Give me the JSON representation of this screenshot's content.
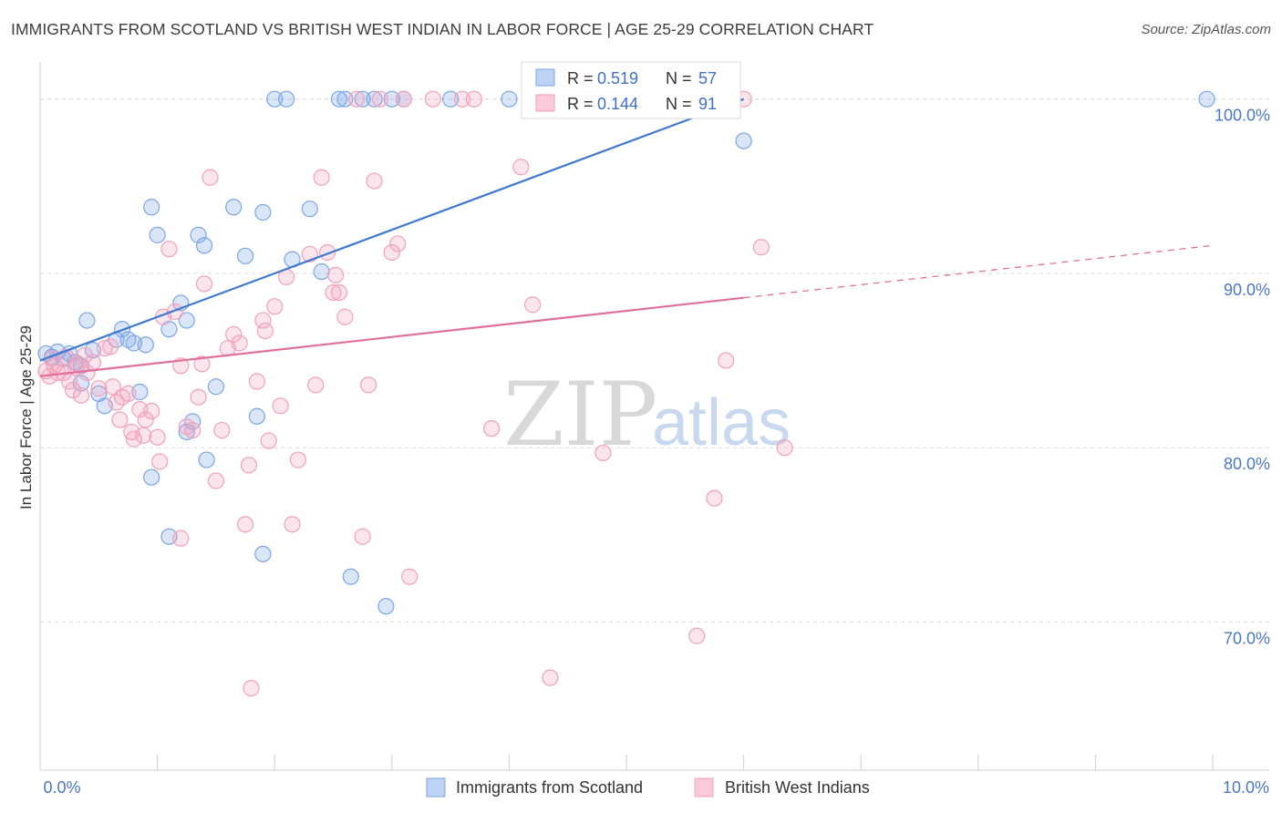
{
  "title": "IMMIGRANTS FROM SCOTLAND VS BRITISH WEST INDIAN IN LABOR FORCE | AGE 25-29 CORRELATION CHART",
  "source": "Source: ZipAtlas.com",
  "watermark": {
    "zip": "ZIP",
    "atlas": "atlas"
  },
  "legend": {
    "r_label": "R =",
    "n_label": "N =",
    "entries": [
      {
        "r": "0.519",
        "n": "57"
      },
      {
        "r": "0.144",
        "n": "91"
      }
    ]
  },
  "bottom_legend": [
    {
      "label": "Immigrants from Scotland"
    },
    {
      "label": "British West Indians"
    }
  ],
  "chart_data": {
    "type": "scatter",
    "xlabel": "",
    "ylabel": "In Labor Force | Age 25-29",
    "x_tick_labels": [
      "0.0%",
      "10.0%"
    ],
    "y_tick_labels": [
      "100.0%",
      "90.0%",
      "80.0%",
      "70.0%"
    ],
    "xlim": [
      0,
      10
    ],
    "ylim": [
      61.5,
      101.5
    ],
    "y_ticks": [
      100,
      90,
      80,
      70
    ],
    "grid": true,
    "colors": {
      "scotland": "#7aa6e6",
      "scotland_line": "#3e78cf",
      "bwi": "#f2a0bb",
      "bwi_line": "#e0709a"
    },
    "series": [
      {
        "name": "Immigrants from Scotland",
        "key": "scotland",
        "trend": {
          "x0": 0.0,
          "y0": 85.0,
          "x1": 6.0,
          "y1": 100.0
        },
        "points": [
          [
            0.05,
            85.4
          ],
          [
            0.1,
            85.2
          ],
          [
            0.15,
            85.5
          ],
          [
            0.2,
            85.1
          ],
          [
            0.25,
            85.4
          ],
          [
            0.3,
            84.9
          ],
          [
            0.35,
            84.7
          ],
          [
            0.35,
            83.7
          ],
          [
            0.4,
            87.3
          ],
          [
            0.45,
            85.6
          ],
          [
            0.5,
            83.1
          ],
          [
            0.55,
            82.4
          ],
          [
            0.65,
            86.2
          ],
          [
            0.7,
            86.8
          ],
          [
            0.75,
            86.2
          ],
          [
            0.8,
            86.0
          ],
          [
            0.85,
            83.2
          ],
          [
            0.9,
            85.9
          ],
          [
            0.95,
            78.3
          ],
          [
            0.95,
            93.8
          ],
          [
            1.0,
            92.2
          ],
          [
            1.1,
            86.8
          ],
          [
            1.1,
            74.9
          ],
          [
            1.2,
            88.3
          ],
          [
            1.25,
            87.3
          ],
          [
            1.25,
            80.9
          ],
          [
            1.3,
            81.5
          ],
          [
            1.35,
            92.2
          ],
          [
            1.4,
            91.6
          ],
          [
            1.42,
            79.3
          ],
          [
            1.5,
            83.5
          ],
          [
            1.65,
            93.8
          ],
          [
            1.75,
            91.0
          ],
          [
            1.85,
            81.8
          ],
          [
            1.9,
            93.5
          ],
          [
            1.9,
            73.9
          ],
          [
            2.0,
            100.0
          ],
          [
            2.1,
            100.0
          ],
          [
            2.15,
            90.8
          ],
          [
            2.3,
            93.7
          ],
          [
            2.4,
            90.1
          ],
          [
            2.55,
            100.0
          ],
          [
            2.6,
            100.0
          ],
          [
            2.65,
            72.6
          ],
          [
            2.75,
            100.0
          ],
          [
            2.85,
            100.0
          ],
          [
            2.95,
            70.9
          ],
          [
            3.0,
            100.0
          ],
          [
            3.1,
            100.0
          ],
          [
            3.5,
            100.0
          ],
          [
            4.0,
            100.0
          ],
          [
            4.3,
            100.0
          ],
          [
            4.7,
            100.0
          ],
          [
            5.4,
            100.0
          ],
          [
            5.9,
            100.0
          ],
          [
            6.0,
            97.6
          ],
          [
            9.95,
            100.0
          ]
        ]
      },
      {
        "name": "British West Indians",
        "key": "bwi",
        "trend": {
          "x0": 0.0,
          "y0": 84.1,
          "x1": 6.0,
          "y1": 88.6
        },
        "trend_dash": {
          "x0": 6.0,
          "y0": 88.6,
          "x1": 10.0,
          "y1": 91.6
        },
        "points": [
          [
            0.05,
            84.4
          ],
          [
            0.08,
            84.1
          ],
          [
            0.1,
            85.1
          ],
          [
            0.12,
            84.7
          ],
          [
            0.15,
            84.3
          ],
          [
            0.2,
            84.3
          ],
          [
            0.22,
            85.2
          ],
          [
            0.25,
            83.8
          ],
          [
            0.28,
            83.3
          ],
          [
            0.3,
            84.6
          ],
          [
            0.32,
            84.8
          ],
          [
            0.35,
            83.0
          ],
          [
            0.38,
            85.3
          ],
          [
            0.4,
            84.3
          ],
          [
            0.45,
            84.9
          ],
          [
            0.5,
            83.4
          ],
          [
            0.55,
            85.7
          ],
          [
            0.6,
            85.8
          ],
          [
            0.62,
            83.5
          ],
          [
            0.65,
            82.6
          ],
          [
            0.68,
            81.6
          ],
          [
            0.7,
            82.9
          ],
          [
            0.75,
            83.1
          ],
          [
            0.78,
            80.9
          ],
          [
            0.8,
            80.5
          ],
          [
            0.85,
            82.2
          ],
          [
            0.88,
            80.7
          ],
          [
            0.9,
            81.6
          ],
          [
            0.95,
            82.1
          ],
          [
            1.0,
            80.6
          ],
          [
            1.02,
            79.2
          ],
          [
            1.05,
            87.5
          ],
          [
            1.1,
            91.4
          ],
          [
            1.15,
            87.8
          ],
          [
            1.2,
            84.7
          ],
          [
            1.25,
            81.2
          ],
          [
            1.3,
            81.0
          ],
          [
            1.35,
            82.9
          ],
          [
            1.38,
            84.8
          ],
          [
            1.4,
            89.4
          ],
          [
            1.45,
            95.5
          ],
          [
            1.5,
            78.1
          ],
          [
            1.55,
            81.0
          ],
          [
            1.6,
            85.7
          ],
          [
            1.65,
            86.5
          ],
          [
            1.7,
            86.0
          ],
          [
            1.75,
            75.6
          ],
          [
            1.78,
            79.0
          ],
          [
            1.8,
            66.2
          ],
          [
            1.85,
            83.8
          ],
          [
            1.9,
            87.3
          ],
          [
            1.92,
            86.7
          ],
          [
            1.95,
            80.4
          ],
          [
            2.0,
            88.1
          ],
          [
            2.05,
            82.4
          ],
          [
            2.1,
            89.8
          ],
          [
            2.15,
            75.6
          ],
          [
            2.2,
            79.3
          ],
          [
            2.3,
            91.1
          ],
          [
            2.35,
            83.6
          ],
          [
            2.4,
            95.5
          ],
          [
            2.45,
            91.2
          ],
          [
            2.5,
            88.9
          ],
          [
            2.52,
            89.9
          ],
          [
            2.55,
            88.9
          ],
          [
            2.6,
            87.5
          ],
          [
            2.7,
            100.0
          ],
          [
            2.75,
            74.9
          ],
          [
            2.8,
            83.6
          ],
          [
            2.85,
            95.3
          ],
          [
            2.9,
            100.0
          ],
          [
            3.0,
            91.2
          ],
          [
            3.05,
            91.7
          ],
          [
            3.1,
            100.0
          ],
          [
            3.15,
            72.6
          ],
          [
            3.35,
            100.0
          ],
          [
            3.6,
            100.0
          ],
          [
            3.7,
            100.0
          ],
          [
            3.85,
            81.1
          ],
          [
            4.1,
            96.1
          ],
          [
            4.2,
            88.2
          ],
          [
            4.35,
            66.8
          ],
          [
            4.8,
            79.7
          ],
          [
            5.5,
            100.0
          ],
          [
            5.6,
            69.2
          ],
          [
            5.75,
            77.1
          ],
          [
            5.85,
            85.0
          ],
          [
            6.15,
            91.5
          ],
          [
            6.35,
            80.0
          ],
          [
            6.0,
            100.0
          ],
          [
            1.2,
            74.8
          ]
        ]
      }
    ]
  }
}
